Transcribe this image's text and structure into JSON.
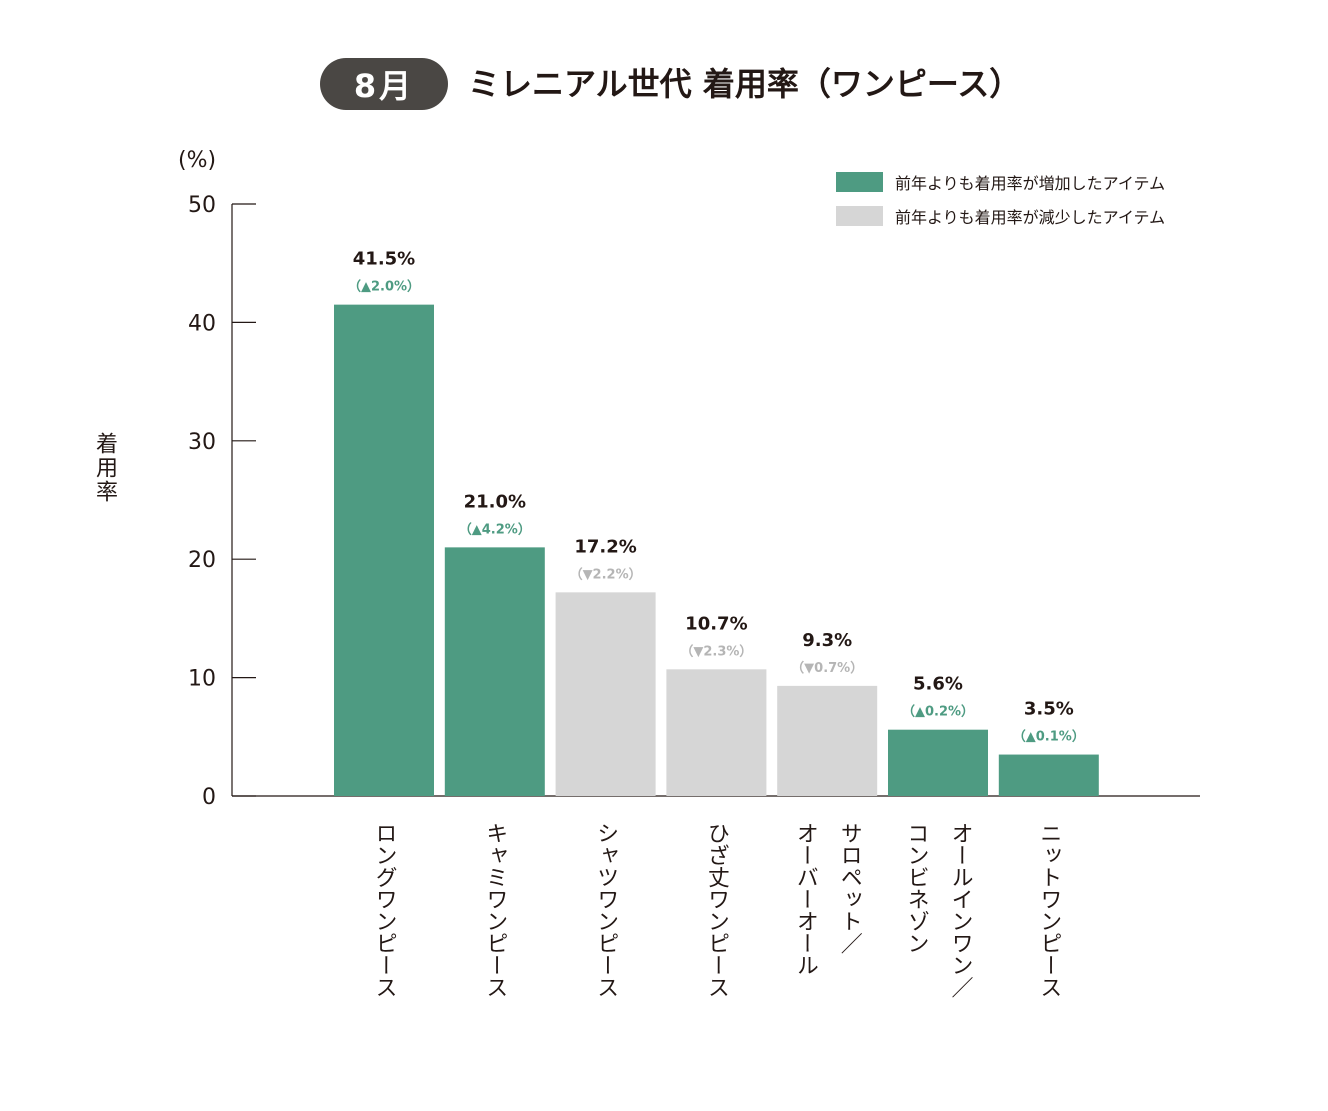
{
  "header": {
    "month_badge": "8月",
    "title": "ミレニアル世代 着用率（ワンピース）"
  },
  "legend": {
    "increase": "前年よりも着用率が増加したアイテム",
    "decrease": "前年よりも着用率が減少したアイテム"
  },
  "colors": {
    "increase": "#4e9b82",
    "decrease": "#d6d6d6",
    "axis": "#231815"
  },
  "chart_data": {
    "type": "bar",
    "ylabel": "着用率",
    "yunit": "(%)",
    "ylim": [
      0,
      50
    ],
    "yticks": [
      0,
      10,
      20,
      30,
      40,
      50
    ],
    "grid": false,
    "legend_position": "top-right",
    "categories": [
      "ロングワンピース",
      "キャミワンピース",
      "シャツワンピース",
      "ひざ丈ワンピース",
      "サロペット／オーバーオール",
      "オールインワン／コンビネゾン",
      "ニットワンピース"
    ],
    "category_lines": [
      [
        "ロングワンピース"
      ],
      [
        "キャミワンピース"
      ],
      [
        "シャツワンピース"
      ],
      [
        "ひざ丈ワンピース"
      ],
      [
        "サロペット／",
        "オーバーオール"
      ],
      [
        "オールインワン／",
        "コンビネゾン"
      ],
      [
        "ニットワンピース"
      ]
    ],
    "values": [
      41.5,
      21.0,
      17.2,
      10.7,
      9.3,
      5.6,
      3.5
    ],
    "value_labels": [
      "41.5%",
      "21.0%",
      "17.2%",
      "10.7%",
      "9.3%",
      "5.6%",
      "3.5%"
    ],
    "changes": [
      "（▲2.0%）",
      "（▲4.2%）",
      "（▼2.2%）",
      "（▼2.3%）",
      "（▼0.7%）",
      "（▲0.2%）",
      "（▲0.1%）"
    ],
    "trend": [
      "increase",
      "increase",
      "decrease",
      "decrease",
      "decrease",
      "increase",
      "increase"
    ]
  }
}
